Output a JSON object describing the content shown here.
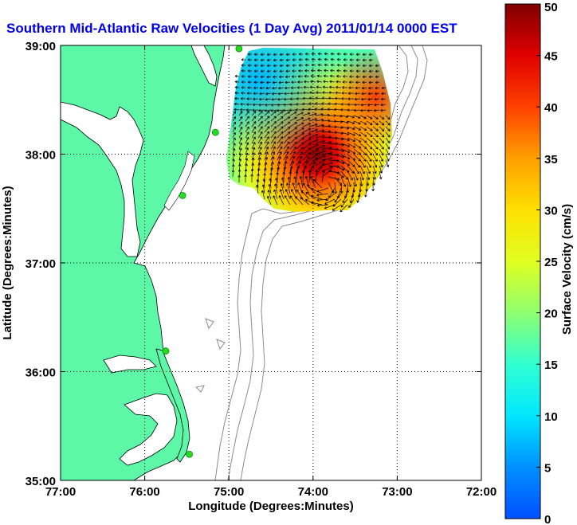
{
  "title": "Southern Mid-Atlantic Raw Velocities (1 Day Avg) 2011/01/14 0000 EST",
  "x_axis": {
    "label": "Longitude (Degrees:Minutes)",
    "ticks": [
      "77:00",
      "76:00",
      "75:00",
      "74:00",
      "73:00",
      "72:00"
    ]
  },
  "y_axis": {
    "label": "Latitude (Degrees:Minutes)",
    "ticks": [
      "39:00",
      "38:00",
      "37:00",
      "36:00",
      "35:00"
    ]
  },
  "colorbar": {
    "label": "Surface Velocity (cm/s)",
    "ticks": [
      "0",
      "5",
      "10",
      "15",
      "20",
      "25",
      "30",
      "35",
      "40",
      "45",
      "50"
    ],
    "min": 0,
    "max": 50
  },
  "map": {
    "lon_range": [
      -77,
      -72
    ],
    "lat_range": [
      35,
      39
    ],
    "grid": true,
    "colors": {
      "land": "#5cf8a8",
      "coast_outline": "#000000",
      "isobath": "#8c8c8c",
      "station": "#22dd22",
      "title": "#0000ee"
    }
  },
  "stations": [
    {
      "lon": -74.88,
      "lat": 38.97
    },
    {
      "lon": -75.16,
      "lat": 38.2
    },
    {
      "lon": -75.55,
      "lat": 37.62
    },
    {
      "lon": -75.75,
      "lat": 36.19
    },
    {
      "lon": -75.47,
      "lat": 35.24
    }
  ]
}
